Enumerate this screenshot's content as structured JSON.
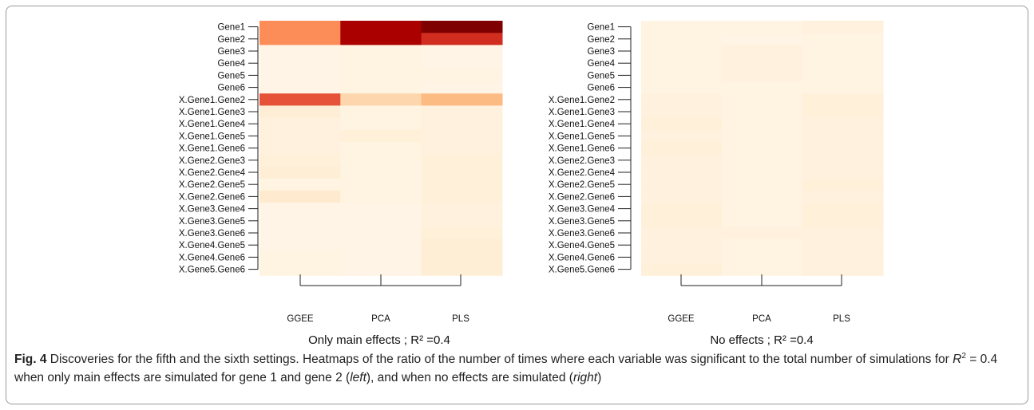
{
  "chart_data": [
    {
      "type": "heatmap",
      "title": "Only main effects ; R² =0.4",
      "xlabel": "",
      "ylabel": "",
      "columns": [
        "GGEE",
        "PCA",
        "PLS"
      ],
      "rows": [
        "Gene1",
        "Gene2",
        "Gene3",
        "Gene4",
        "Gene5",
        "Gene6",
        "X.Gene1.Gene2",
        "X.Gene1.Gene3",
        "X.Gene1.Gene4",
        "X.Gene1.Gene5",
        "X.Gene1.Gene6",
        "X.Gene2.Gene3",
        "X.Gene2.Gene4",
        "X.Gene2.Gene5",
        "X.Gene2.Gene6",
        "X.Gene3.Gene4",
        "X.Gene3.Gene5",
        "X.Gene3.Gene6",
        "X.Gene4.Gene5",
        "X.Gene4.Gene6",
        "X.Gene5.Gene6"
      ],
      "values": [
        [
          0.45,
          0.85,
          1.0
        ],
        [
          0.45,
          0.85,
          0.7
        ],
        [
          0.02,
          0.03,
          0.02
        ],
        [
          0.02,
          0.03,
          0.02
        ],
        [
          0.02,
          0.03,
          0.03
        ],
        [
          0.02,
          0.03,
          0.02
        ],
        [
          0.6,
          0.18,
          0.3
        ],
        [
          0.06,
          0.03,
          0.04
        ],
        [
          0.04,
          0.03,
          0.04
        ],
        [
          0.04,
          0.05,
          0.04
        ],
        [
          0.04,
          0.03,
          0.04
        ],
        [
          0.05,
          0.03,
          0.05
        ],
        [
          0.06,
          0.03,
          0.05
        ],
        [
          0.03,
          0.03,
          0.05
        ],
        [
          0.08,
          0.03,
          0.05
        ],
        [
          0.02,
          0.02,
          0.04
        ],
        [
          0.02,
          0.02,
          0.04
        ],
        [
          0.02,
          0.02,
          0.05
        ],
        [
          0.02,
          0.02,
          0.06
        ],
        [
          0.03,
          0.02,
          0.06
        ],
        [
          0.03,
          0.02,
          0.06
        ]
      ]
    },
    {
      "type": "heatmap",
      "title": "No effects ; R² =0.4",
      "xlabel": "",
      "ylabel": "",
      "columns": [
        "GGEE",
        "PCA",
        "PLS"
      ],
      "rows": [
        "Gene1",
        "Gene2",
        "Gene3",
        "Gene4",
        "Gene5",
        "Gene6",
        "X.Gene1.Gene2",
        "X.Gene1.Gene3",
        "X.Gene1.Gene4",
        "X.Gene1.Gene5",
        "X.Gene1.Gene6",
        "X.Gene2.Gene3",
        "X.Gene2.Gene4",
        "X.Gene2.Gene5",
        "X.Gene2.Gene6",
        "X.Gene3.Gene4",
        "X.Gene3.Gene5",
        "X.Gene3.Gene6",
        "X.Gene4.Gene5",
        "X.Gene4.Gene6",
        "X.Gene5.Gene6"
      ],
      "values": [
        [
          0.03,
          0.03,
          0.04
        ],
        [
          0.03,
          0.02,
          0.03
        ],
        [
          0.03,
          0.04,
          0.03
        ],
        [
          0.03,
          0.04,
          0.03
        ],
        [
          0.03,
          0.04,
          0.03
        ],
        [
          0.03,
          0.03,
          0.03
        ],
        [
          0.04,
          0.03,
          0.05
        ],
        [
          0.04,
          0.03,
          0.05
        ],
        [
          0.05,
          0.03,
          0.04
        ],
        [
          0.04,
          0.03,
          0.04
        ],
        [
          0.05,
          0.03,
          0.04
        ],
        [
          0.04,
          0.03,
          0.04
        ],
        [
          0.04,
          0.03,
          0.04
        ],
        [
          0.04,
          0.03,
          0.05
        ],
        [
          0.04,
          0.03,
          0.04
        ],
        [
          0.05,
          0.03,
          0.05
        ],
        [
          0.05,
          0.03,
          0.05
        ],
        [
          0.04,
          0.04,
          0.04
        ],
        [
          0.04,
          0.03,
          0.04
        ],
        [
          0.04,
          0.03,
          0.04
        ],
        [
          0.05,
          0.03,
          0.04
        ]
      ]
    }
  ],
  "caption": {
    "fig_label": "Fig. 4",
    "sentence1": " Discoveries for the fifth and the sixth settings. Heatmaps of the ratio of the number of times where each variable was significant to the total number of simulations for ",
    "r_symbol": "R",
    "r_exp": "2",
    "r_eq": " = 0.4 when only main effects are simulated for gene 1 and gene 2 (",
    "left_word": "left",
    "mid": "), and when no effects are simulated (",
    "right_word": "right",
    "end": ")"
  }
}
